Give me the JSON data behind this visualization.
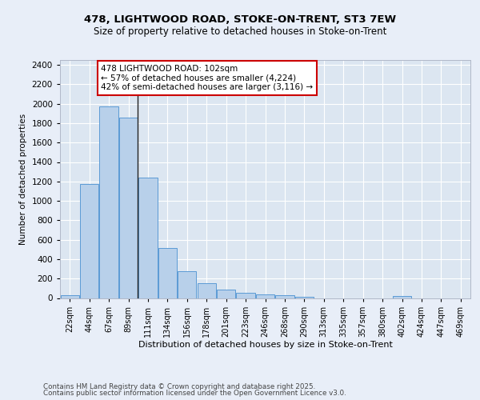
{
  "title_line1": "478, LIGHTWOOD ROAD, STOKE-ON-TRENT, ST3 7EW",
  "title_line2": "Size of property relative to detached houses in Stoke-on-Trent",
  "xlabel": "Distribution of detached houses by size in Stoke-on-Trent",
  "ylabel": "Number of detached properties",
  "categories": [
    "22sqm",
    "44sqm",
    "67sqm",
    "89sqm",
    "111sqm",
    "134sqm",
    "156sqm",
    "178sqm",
    "201sqm",
    "223sqm",
    "246sqm",
    "268sqm",
    "290sqm",
    "313sqm",
    "335sqm",
    "357sqm",
    "380sqm",
    "402sqm",
    "424sqm",
    "447sqm",
    "469sqm"
  ],
  "values": [
    25,
    1175,
    1975,
    1855,
    1240,
    515,
    275,
    155,
    90,
    50,
    40,
    25,
    15,
    0,
    0,
    0,
    0,
    20,
    0,
    0,
    0
  ],
  "bar_color": "#b8d0ea",
  "bar_edge_color": "#5b9bd5",
  "bg_color": "#dce6f1",
  "grid_color": "#ffffff",
  "annotation_text": "478 LIGHTWOOD ROAD: 102sqm\n← 57% of detached houses are smaller (4,224)\n42% of semi-detached houses are larger (3,116) →",
  "annotation_box_facecolor": "#ffffff",
  "annotation_box_edge": "#cc0000",
  "vline_index": 3,
  "ylim": [
    0,
    2450
  ],
  "yticks": [
    0,
    200,
    400,
    600,
    800,
    1000,
    1200,
    1400,
    1600,
    1800,
    2000,
    2200,
    2400
  ],
  "footer_line1": "Contains HM Land Registry data © Crown copyright and database right 2025.",
  "footer_line2": "Contains public sector information licensed under the Open Government Licence v3.0.",
  "fig_facecolor": "#e8eef8"
}
